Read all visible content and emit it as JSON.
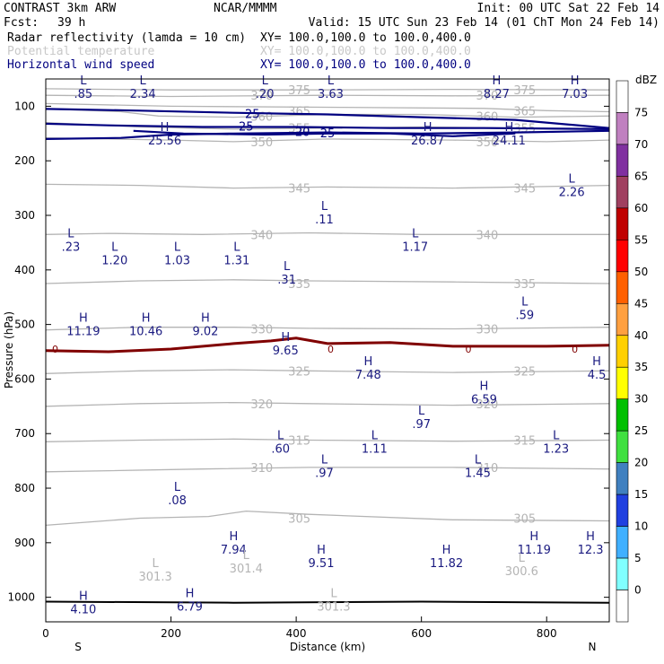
{
  "header": {
    "model": "CONTRAST  3km ARW",
    "org": "NCAR/MMMM",
    "init": "Init: 00 UTC Sat 22 Feb 14",
    "fcst_label": "Fcst:",
    "fcst_value": "39 h",
    "valid": "Valid: 15 UTC Sun 23 Feb 14 (01 ChT Mon 24 Feb 14)",
    "fields": [
      {
        "name": "Radar reflectivity (lamda = 10 cm)",
        "xy": "XY= 100.0,100.0 to 100.0,400.0",
        "color": "#000000"
      },
      {
        "name": "Potential temperature",
        "xy": "XY= 100.0,100.0 to 100.0,400.0",
        "color": "#c0c0c0"
      },
      {
        "name": "Horizontal wind speed",
        "xy": "XY= 100.0,100.0 to 100.0,400.0",
        "color": "#000080"
      }
    ]
  },
  "colors": {
    "theta": "#b4b4b4",
    "wind": "#000080",
    "freezing": "#800000",
    "ground": "#000000",
    "hl_label": "#1a1a80"
  },
  "chart_data": {
    "type": "cross-section",
    "xlabel": "Distance (km)",
    "ylabel": "Pressure (hPa)",
    "xlim": [
      0,
      900
    ],
    "ylim": [
      1045,
      50
    ],
    "x_ticks": [
      "0",
      "200",
      "400",
      "600",
      "800"
    ],
    "x_tick_values": [
      0,
      200,
      400,
      600,
      800
    ],
    "y_ticks": [
      "100",
      "200",
      "300",
      "400",
      "500",
      "600",
      "700",
      "800",
      "900",
      "1000"
    ],
    "y_tick_values": [
      100,
      200,
      300,
      400,
      500,
      600,
      700,
      800,
      900,
      1000
    ],
    "end_labels": {
      "left": "S",
      "right": "N"
    },
    "colorbar": {
      "title": "dBZ",
      "levels": [
        "75",
        "70",
        "65",
        "60",
        "55",
        "50",
        "45",
        "40",
        "35",
        "30",
        "25",
        "20",
        "15",
        "10",
        "5",
        "0"
      ],
      "colors": [
        "#ffffff",
        "#c080c0",
        "#8030a0",
        "#a04060",
        "#c00000",
        "#ff0000",
        "#ff6000",
        "#ffa040",
        "#ffd000",
        "#ffff00",
        "#00c000",
        "#40e040",
        "#4080c0",
        "#2040e0",
        "#40b0ff",
        "#80ffff",
        "#ffffff"
      ]
    },
    "theta_contours": [
      {
        "label": "375",
        "p": 70,
        "pts": [
          [
            0,
            68
          ],
          [
            200,
            70
          ],
          [
            450,
            70
          ],
          [
            650,
            69
          ],
          [
            900,
            70
          ]
        ]
      },
      {
        "label": "370",
        "p": 80,
        "pts": [
          [
            0,
            80
          ],
          [
            200,
            82
          ],
          [
            450,
            80
          ],
          [
            650,
            81
          ],
          [
            900,
            80
          ]
        ]
      },
      {
        "label": "365",
        "p": 108,
        "pts": [
          [
            0,
            95
          ],
          [
            200,
            100
          ],
          [
            470,
            102
          ],
          [
            700,
            104
          ],
          [
            800,
            108
          ],
          [
            900,
            110
          ]
        ]
      },
      {
        "label": "360",
        "p": 118,
        "pts": [
          [
            0,
            105
          ],
          [
            120,
            110
          ],
          [
            180,
            118
          ],
          [
            300,
            120
          ],
          [
            450,
            115
          ],
          [
            600,
            115
          ],
          [
            750,
            120
          ],
          [
            900,
            118
          ]
        ]
      },
      {
        "label": "355",
        "p": 140,
        "pts": [
          [
            0,
            130
          ],
          [
            150,
            138
          ],
          [
            300,
            142
          ],
          [
            450,
            140
          ],
          [
            600,
            138
          ],
          [
            900,
            142
          ]
        ]
      },
      {
        "label": "350",
        "p": 165,
        "pts": [
          [
            0,
            158
          ],
          [
            200,
            162
          ],
          [
            300,
            165
          ],
          [
            450,
            160
          ],
          [
            650,
            162
          ],
          [
            800,
            165
          ],
          [
            900,
            162
          ]
        ]
      },
      {
        "label": "345",
        "p": 250,
        "pts": [
          [
            0,
            243
          ],
          [
            150,
            245
          ],
          [
            300,
            250
          ],
          [
            450,
            248
          ],
          [
            650,
            250
          ],
          [
            900,
            245
          ]
        ]
      },
      {
        "label": "340",
        "p": 335,
        "pts": [
          [
            0,
            335
          ],
          [
            100,
            333
          ],
          [
            250,
            335
          ],
          [
            420,
            332
          ],
          [
            600,
            335
          ],
          [
            900,
            335
          ]
        ]
      },
      {
        "label": "335",
        "p": 425,
        "pts": [
          [
            0,
            425
          ],
          [
            150,
            420
          ],
          [
            300,
            418
          ],
          [
            420,
            420
          ],
          [
            650,
            422
          ],
          [
            900,
            425
          ]
        ]
      },
      {
        "label": "330",
        "p": 508,
        "pts": [
          [
            0,
            510
          ],
          [
            150,
            505
          ],
          [
            300,
            505
          ],
          [
            420,
            507
          ],
          [
            650,
            508
          ],
          [
            900,
            505
          ]
        ]
      },
      {
        "label": "325",
        "p": 585,
        "pts": [
          [
            0,
            590
          ],
          [
            150,
            585
          ],
          [
            300,
            583
          ],
          [
            420,
            585
          ],
          [
            650,
            588
          ],
          [
            900,
            585
          ]
        ]
      },
      {
        "label": "320",
        "p": 645,
        "pts": [
          [
            0,
            650
          ],
          [
            150,
            645
          ],
          [
            300,
            643
          ],
          [
            420,
            645
          ],
          [
            650,
            648
          ],
          [
            900,
            645
          ]
        ]
      },
      {
        "label": "315",
        "p": 712,
        "pts": [
          [
            0,
            715
          ],
          [
            150,
            712
          ],
          [
            300,
            710
          ],
          [
            420,
            712
          ],
          [
            650,
            714
          ],
          [
            900,
            712
          ]
        ]
      },
      {
        "label": "310",
        "p": 762,
        "pts": [
          [
            0,
            770
          ],
          [
            100,
            768
          ],
          [
            250,
            765
          ],
          [
            420,
            762
          ],
          [
            650,
            762
          ],
          [
            900,
            765
          ]
        ]
      },
      {
        "label": "305",
        "p": 855,
        "pts": [
          [
            0,
            868
          ],
          [
            150,
            855
          ],
          [
            260,
            852
          ],
          [
            320,
            842
          ],
          [
            420,
            848
          ],
          [
            650,
            858
          ],
          [
            900,
            860
          ]
        ]
      }
    ],
    "wind_contours": [
      {
        "label": "25",
        "pts": [
          [
            0,
            105
          ],
          [
            150,
            108
          ],
          [
            300,
            112
          ],
          [
            450,
            115
          ],
          [
            600,
            120
          ],
          [
            750,
            125
          ],
          [
            900,
            140
          ]
        ]
      },
      {
        "label": "25",
        "pts": [
          [
            0,
            132
          ],
          [
            100,
            135
          ],
          [
            250,
            138
          ],
          [
            400,
            138
          ],
          [
            550,
            140
          ],
          [
            700,
            140
          ],
          [
            900,
            142
          ]
        ]
      },
      {
        "label": "20",
        "pts": [
          [
            0,
            160
          ],
          [
            120,
            158
          ],
          [
            200,
            152
          ],
          [
            300,
            150
          ],
          [
            450,
            148
          ],
          [
            600,
            150
          ],
          [
            750,
            148
          ],
          [
            900,
            145
          ]
        ]
      },
      {
        "label": "25",
        "pts": [
          [
            140,
            145
          ],
          [
            220,
            150
          ],
          [
            350,
            152
          ],
          [
            450,
            150
          ],
          [
            550,
            150
          ],
          [
            650,
            155
          ],
          [
            750,
            150
          ]
        ]
      }
    ],
    "freezing_level": [
      [
        0,
        548
      ],
      [
        100,
        550
      ],
      [
        200,
        545
      ],
      [
        300,
        535
      ],
      [
        360,
        530
      ],
      [
        400,
        525
      ],
      [
        450,
        535
      ],
      [
        550,
        533
      ],
      [
        650,
        540
      ],
      [
        800,
        540
      ],
      [
        900,
        538
      ]
    ],
    "ground": [
      [
        0,
        1008
      ],
      [
        300,
        1010
      ],
      [
        600,
        1008
      ],
      [
        900,
        1010
      ]
    ],
    "extrema": [
      {
        "type": "L",
        "x": 60,
        "p": 60,
        "value": ".85"
      },
      {
        "type": "L",
        "x": 155,
        "p": 60,
        "value": "2.34"
      },
      {
        "type": "L",
        "x": 350,
        "p": 60,
        "value": ".20"
      },
      {
        "type": "L",
        "x": 455,
        "p": 60,
        "value": "3.63"
      },
      {
        "type": "H",
        "x": 720,
        "p": 60,
        "value": "8.27"
      },
      {
        "type": "H",
        "x": 845,
        "p": 60,
        "value": "7.03"
      },
      {
        "type": "H",
        "x": 190,
        "p": 145,
        "value": "25.56"
      },
      {
        "type": "H",
        "x": 610,
        "p": 145,
        "value": "26.87"
      },
      {
        "type": "H",
        "x": 740,
        "p": 145,
        "value": "24.11"
      },
      {
        "type": "L",
        "x": 840,
        "p": 240,
        "value": "2.26"
      },
      {
        "type": "L",
        "x": 445,
        "p": 290,
        "value": ".11"
      },
      {
        "type": "L",
        "x": 40,
        "p": 340,
        "value": ".23"
      },
      {
        "type": "L",
        "x": 590,
        "p": 340,
        "value": "1.17"
      },
      {
        "type": "L",
        "x": 110,
        "p": 365,
        "value": "1.20"
      },
      {
        "type": "L",
        "x": 210,
        "p": 365,
        "value": "1.03"
      },
      {
        "type": "L",
        "x": 305,
        "p": 365,
        "value": "1.31"
      },
      {
        "type": "L",
        "x": 385,
        "p": 400,
        "value": ".31"
      },
      {
        "type": "L",
        "x": 765,
        "p": 465,
        "value": ".59"
      },
      {
        "type": "H",
        "x": 60,
        "p": 495,
        "value": "11.19"
      },
      {
        "type": "H",
        "x": 160,
        "p": 495,
        "value": "10.46"
      },
      {
        "type": "H",
        "x": 255,
        "p": 495,
        "value": "9.02"
      },
      {
        "type": "H",
        "x": 383,
        "p": 530,
        "value": "9.65"
      },
      {
        "type": "H",
        "x": 515,
        "p": 575,
        "value": "7.48"
      },
      {
        "type": "H",
        "x": 880,
        "p": 575,
        "value": "4.5"
      },
      {
        "type": "H",
        "x": 700,
        "p": 620,
        "value": "6.59"
      },
      {
        "type": "L",
        "x": 600,
        "p": 665,
        "value": ".97"
      },
      {
        "type": "L",
        "x": 375,
        "p": 710,
        "value": ".60"
      },
      {
        "type": "L",
        "x": 525,
        "p": 710,
        "value": "1.11"
      },
      {
        "type": "L",
        "x": 815,
        "p": 710,
        "value": "1.23"
      },
      {
        "type": "L",
        "x": 445,
        "p": 755,
        "value": ".97"
      },
      {
        "type": "L",
        "x": 690,
        "p": 755,
        "value": "1.45"
      },
      {
        "type": "L",
        "x": 210,
        "p": 805,
        "value": ".08"
      },
      {
        "type": "H",
        "x": 300,
        "p": 895,
        "value": "7.94"
      },
      {
        "type": "H",
        "x": 440,
        "p": 920,
        "value": "9.51"
      },
      {
        "type": "H",
        "x": 640,
        "p": 920,
        "value": "11.82"
      },
      {
        "type": "H",
        "x": 780,
        "p": 895,
        "value": "11.19"
      },
      {
        "type": "H",
        "x": 870,
        "p": 895,
        "value": "12.3"
      },
      {
        "type": "L",
        "x": 175,
        "p": 945,
        "value": "301.3"
      },
      {
        "type": "L",
        "x": 320,
        "p": 930,
        "value": "301.4"
      },
      {
        "type": "L",
        "x": 760,
        "p": 935,
        "value": "300.6"
      },
      {
        "type": "L",
        "x": 460,
        "p": 1000,
        "value": "301.3"
      },
      {
        "type": "H",
        "x": 60,
        "p": 1005,
        "value": "4.10"
      },
      {
        "type": "H",
        "x": 230,
        "p": 1000,
        "value": "6.79"
      }
    ]
  }
}
